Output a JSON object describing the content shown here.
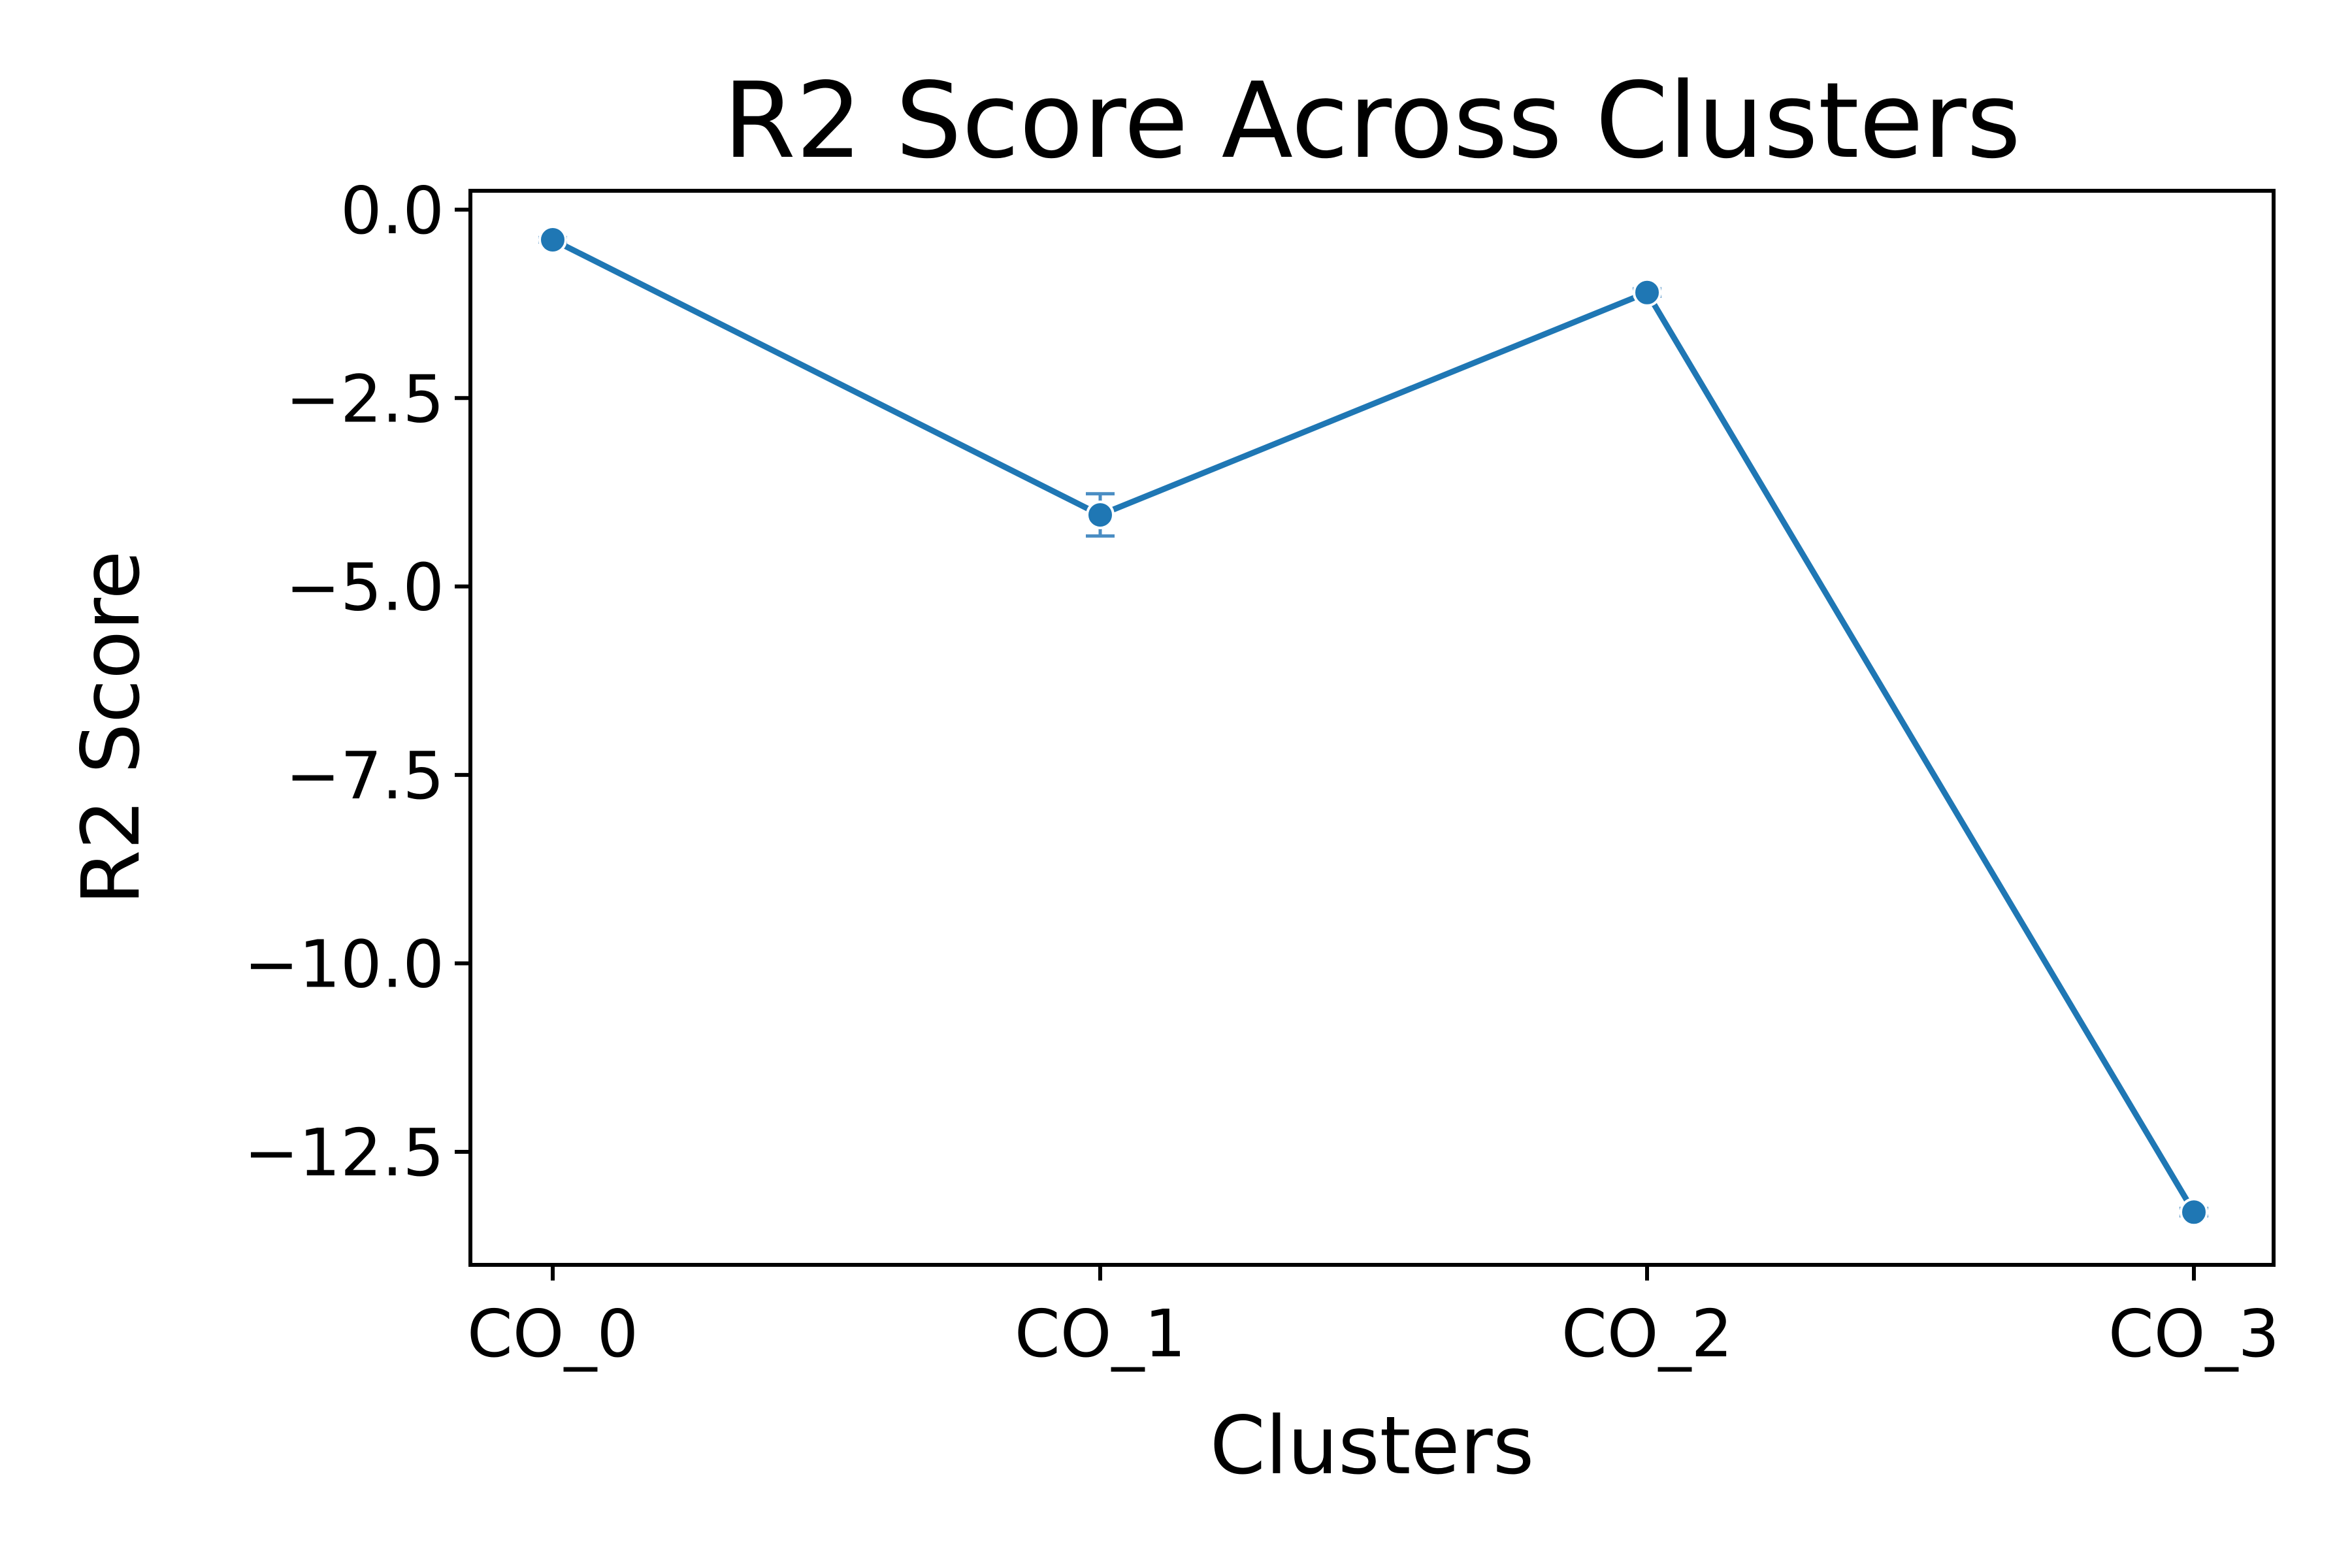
{
  "chart_data": {
    "type": "line",
    "title": "R2 Score Across Clusters",
    "xlabel": "Clusters",
    "ylabel": "R2 Score",
    "categories": [
      "CO_0",
      "CO_1",
      "CO_2",
      "CO_3"
    ],
    "series": [
      {
        "values": [
          -0.4,
          -4.05,
          -1.1,
          -13.3
        ],
        "error": [
          0.03,
          0.28,
          0.05,
          0.05
        ],
        "color": "#1f77b4"
      }
    ],
    "yticks": [
      0.0,
      -2.5,
      -5.0,
      -7.5,
      -10.0,
      -12.5
    ],
    "ytick_labels": [
      "0.0",
      "−2.5",
      "−5.0",
      "−7.5",
      "−10.0",
      "−12.5"
    ],
    "ylim": [
      -14.0,
      0.25
    ],
    "grid": false,
    "legend": "none"
  }
}
